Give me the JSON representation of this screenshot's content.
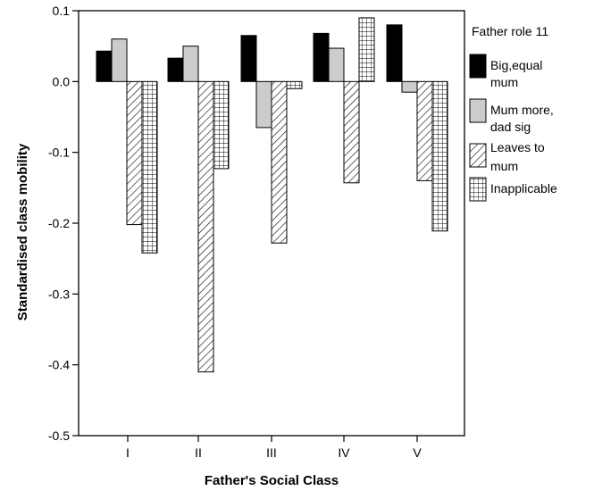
{
  "chart_data": {
    "type": "bar",
    "xlabel": "Father's Social Class",
    "ylabel": "Standardised class mobility",
    "ylim": [
      -0.5,
      0.1
    ],
    "yticks": [
      0.1,
      0.0,
      -0.1,
      -0.2,
      -0.3,
      -0.4,
      -0.5
    ],
    "ytick_labels": [
      "0.1",
      "0.0",
      "-0.1",
      "-0.2",
      "-0.3",
      "-0.4",
      "-0.5"
    ],
    "categories": [
      "I",
      "II",
      "III",
      "IV",
      "V"
    ],
    "legend_title": "Father role 11",
    "legend_placement": "right",
    "grid": false,
    "series": [
      {
        "name": "Big,equal mum",
        "label_lines": [
          "Big,equal",
          "mum"
        ],
        "pattern": "solid-black",
        "values": [
          0.043,
          0.033,
          0.065,
          0.068,
          0.08
        ]
      },
      {
        "name": "Mum more, dad sig",
        "label_lines": [
          "Mum more,",
          "dad sig"
        ],
        "pattern": "solid-gray",
        "values": [
          0.06,
          0.05,
          -0.065,
          0.047,
          -0.015
        ]
      },
      {
        "name": "Leaves to mum",
        "label_lines": [
          "Leaves to",
          "mum"
        ],
        "pattern": "diagonal-hatch",
        "values": [
          -0.202,
          -0.41,
          -0.228,
          -0.143,
          -0.14
        ]
      },
      {
        "name": "Inapplicable",
        "label_lines": [
          "Inapplicable"
        ],
        "pattern": "grid-hatch",
        "values": [
          -0.242,
          -0.123,
          -0.01,
          0.09,
          -0.211
        ]
      }
    ]
  }
}
